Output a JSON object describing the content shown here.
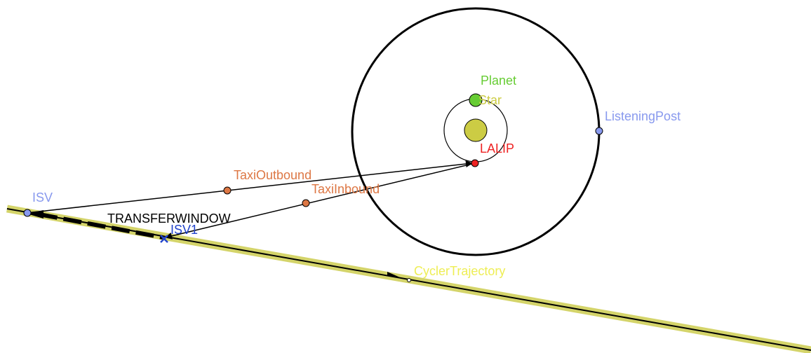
{
  "labels": {
    "planet": "Planet",
    "star": "Star",
    "listening_post": "ListeningPost",
    "lalip": "LALIP",
    "taxi_outbound": "TaxiOutbound",
    "taxi_inbound": "TaxiInbound",
    "isv": "ISV",
    "transfer_window": "TRANSFERWINDOW",
    "isv1": "ISV1",
    "cycler_trajectory": "CyclerTrajectory"
  },
  "colors": {
    "planet": "#66cc33",
    "star": "#cccc44",
    "listening_post": "#8899ee",
    "lalip": "#ee2222",
    "taxi": "#dd7744",
    "isv": "#8899ee",
    "isv1": "#2244cc",
    "cycler_band": "#d4d46a",
    "cycler_label": "#eeee55",
    "transfer_window": "#000000"
  }
}
